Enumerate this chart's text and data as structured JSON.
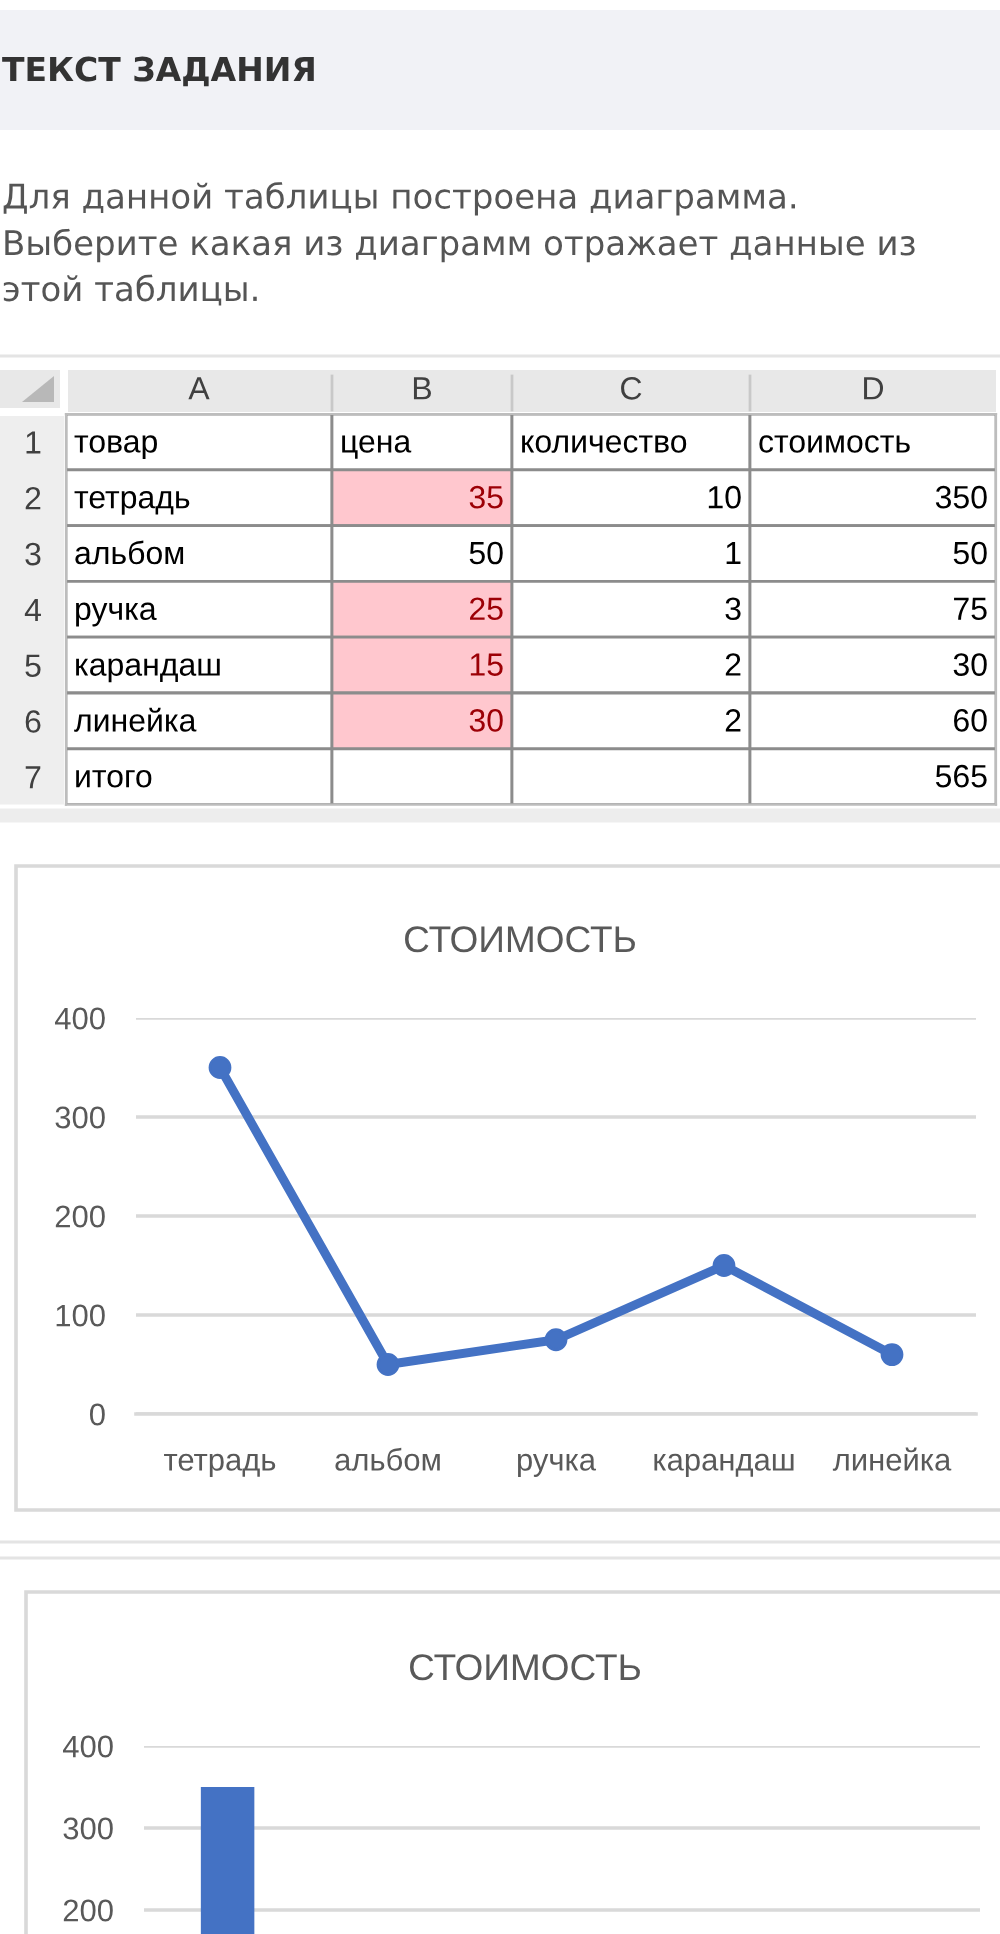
{
  "chart_data": [
    {
      "type": "other",
      "title": "ТЕКСТ ЗАДАНИЯ",
      "subtitle": "Для данной таблицы построена диаграмма.\nВыберите какая из диаграмм отражает данные из этой таблицы."
    },
    {
      "type": "heatmap",
      "categories": [
        "A",
        "B",
        "C",
        "D"
      ],
      "y_categories": [
        "1",
        "2",
        "3",
        "4",
        "5",
        "6",
        "7"
      ],
      "cells": [
        [
          null,
          null,
          null,
          null
        ],
        [
          null,
          35,
          10,
          350
        ],
        [
          null,
          50,
          1,
          50
        ],
        [
          null,
          25,
          3,
          75
        ],
        [
          null,
          15,
          2,
          30
        ],
        [
          null,
          30,
          2,
          60
        ],
        [
          null,
          null,
          null,
          565
        ]
      ],
      "cell_labels": [
        [
          "товар",
          "цена",
          "количество",
          "стоимость"
        ],
        [
          "тетрадь",
          "35",
          "10",
          "350"
        ],
        [
          "альбом",
          "50",
          "1",
          "50"
        ],
        [
          "ручка",
          "25",
          "3",
          "75"
        ],
        [
          "карандаш",
          "15",
          "2",
          "30"
        ],
        [
          "линейка",
          "30",
          "2",
          "60"
        ],
        [
          "итого",
          null,
          null,
          "565"
        ]
      ],
      "colors": [
        [
          "#ffffff",
          "#ffffff",
          "#ffffff",
          "#ffffff"
        ],
        [
          "#ffffff",
          "#ffc7ce",
          "#ffffff",
          "#ffffff"
        ],
        [
          "#ffffff",
          "#ffffff",
          "#ffffff",
          "#ffffff"
        ],
        [
          "#ffffff",
          "#ffc7ce",
          "#ffffff",
          "#ffffff"
        ],
        [
          "#ffffff",
          "#ffc7ce",
          "#ffffff",
          "#ffffff"
        ],
        [
          "#ffffff",
          "#ffc7ce",
          "#ffffff",
          "#ffffff"
        ],
        [
          "#ffffff",
          "#ffffff",
          "#ffffff",
          "#ffffff"
        ]
      ]
    },
    {
      "type": "line",
      "title": "СТОИМОСТЬ",
      "categories": [
        "тетрадь",
        "альбом",
        "ручка",
        "карандаш",
        "линейка"
      ],
      "series": [
        {
          "color": "#4472c4",
          "values": [
            350,
            50,
            75,
            150,
            60
          ]
        }
      ],
      "ylim": [
        0,
        400
      ],
      "yticks": [
        0,
        100,
        200,
        300,
        400
      ],
      "grid": "y",
      "marker": "circle"
    },
    {
      "type": "bar",
      "title": "СТОИМОСТЬ",
      "categories": [
        null,
        null,
        null,
        null,
        null
      ],
      "series": [
        {
          "color": "#4472c4",
          "values": [
            350,
            null,
            null,
            null,
            null
          ]
        }
      ],
      "ylim": [
        0,
        400
      ],
      "yticks": [
        200,
        300,
        400
      ],
      "grid": "y"
    }
  ]
}
